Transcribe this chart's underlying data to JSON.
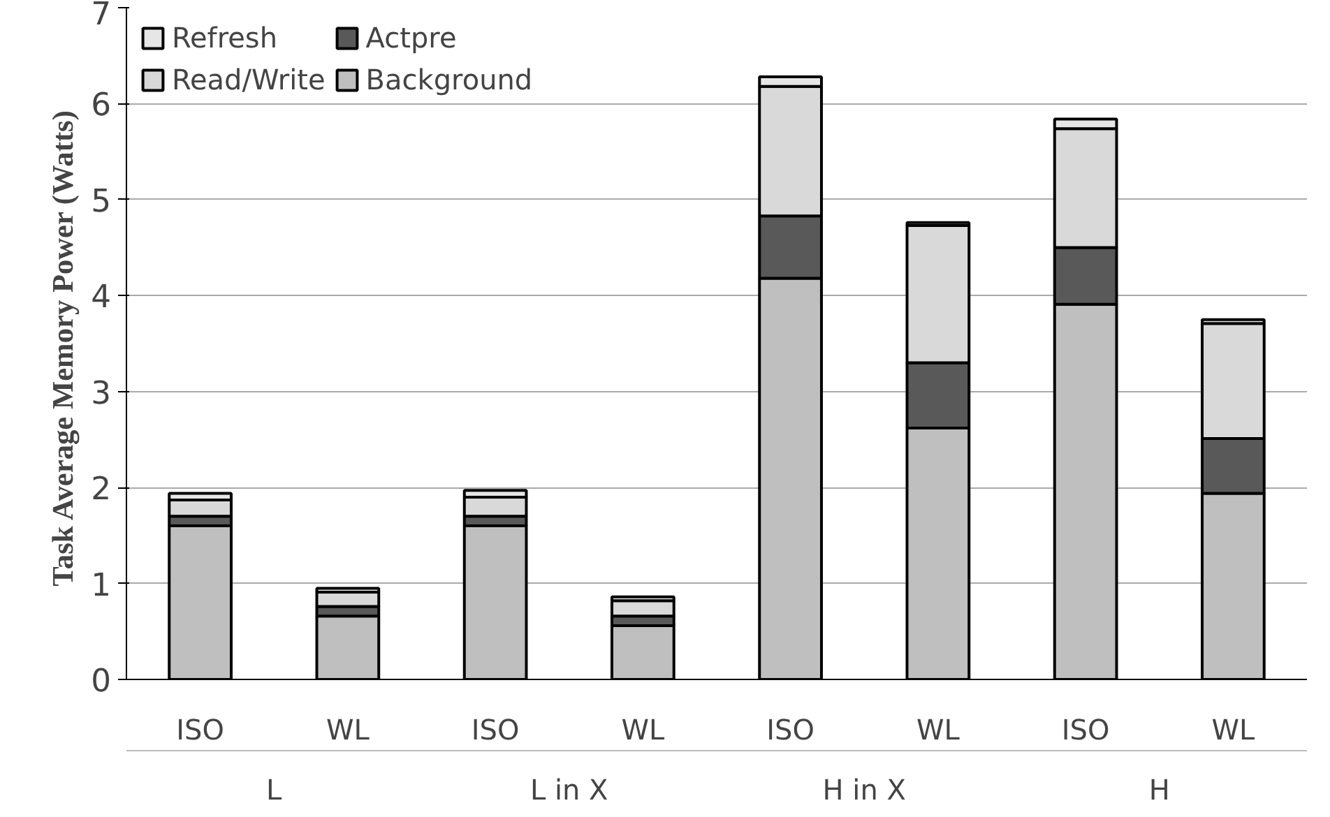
{
  "chart_data": {
    "type": "bar",
    "stacked": true,
    "ylabel": "Task Average Memory Power  (Watts)",
    "categories": [
      "ISO",
      "WL",
      "ISO",
      "WL",
      "ISO",
      "WL",
      "ISO",
      "WL"
    ],
    "annotations": [
      "L",
      "L in X",
      "H in X",
      "H"
    ],
    "series": [
      {
        "name": "Background",
        "color": "#bfbfbf",
        "values": [
          1.6,
          0.66,
          1.6,
          0.56,
          4.18,
          2.62,
          3.91,
          1.94
        ]
      },
      {
        "name": "Actpre",
        "color": "#595959",
        "values": [
          0.1,
          0.1,
          0.1,
          0.1,
          0.65,
          0.68,
          0.59,
          0.57
        ]
      },
      {
        "name": "Read/Write",
        "color": "#d9d9d9",
        "values": [
          0.17,
          0.15,
          0.2,
          0.16,
          1.35,
          1.43,
          1.24,
          1.2
        ]
      },
      {
        "name": "Refresh",
        "color": "#e6e6e6",
        "values": [
          0.07,
          0.04,
          0.07,
          0.04,
          0.1,
          0.03,
          0.1,
          0.04
        ]
      }
    ],
    "ylim": [
      0,
      7
    ],
    "yticks": [
      0,
      1,
      2,
      3,
      4,
      5,
      6,
      7
    ],
    "grid": "y",
    "legend": "top left"
  }
}
